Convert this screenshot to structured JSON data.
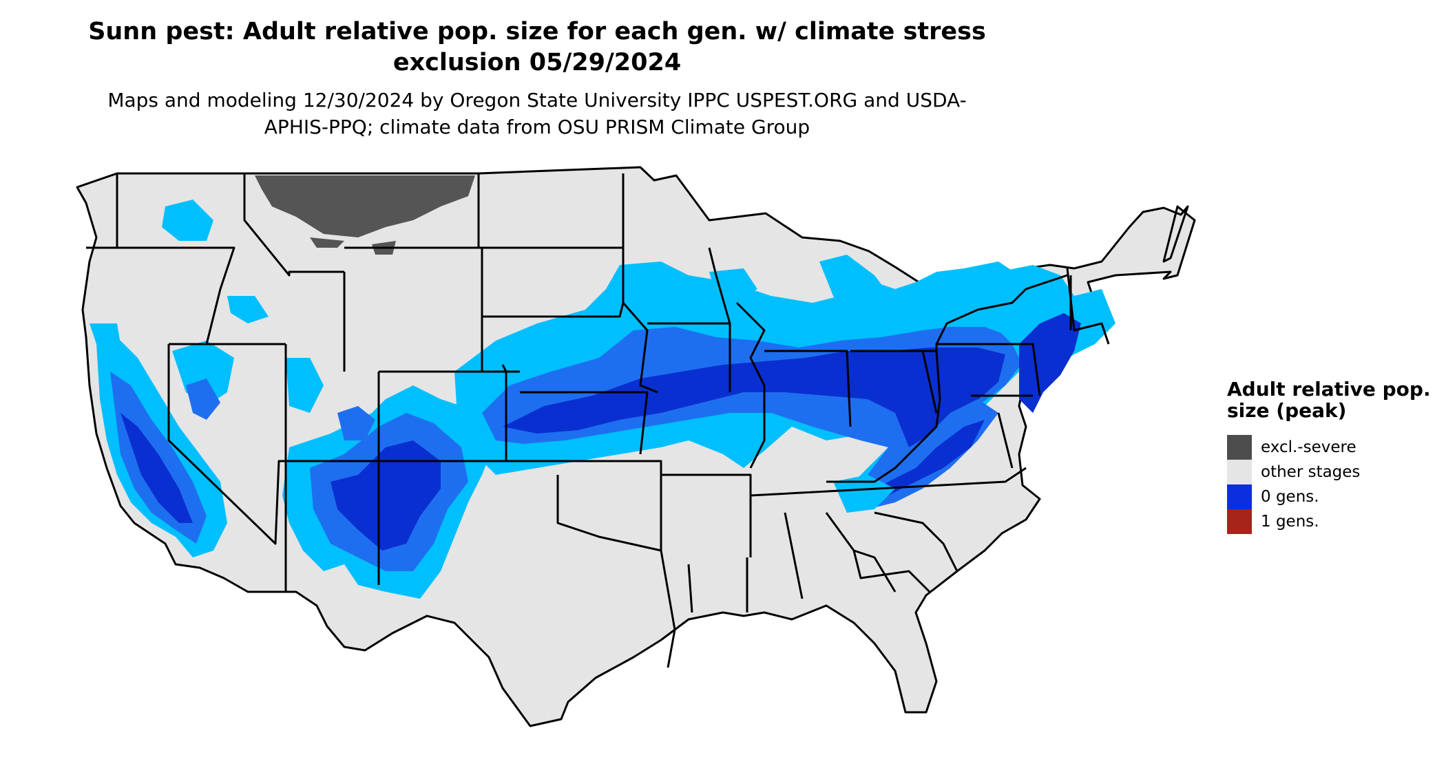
{
  "title": "Sunn pest: Adult relative pop. size for each gen. w/ climate stress exclusion 05/29/2024",
  "subtitle": "Maps and modeling 12/30/2024 by Oregon State University IPPC USPEST.ORG and USDA-APHIS-PPQ; climate data from OSU PRISM Climate Group",
  "map": {
    "region": "conterminous United States",
    "colors": {
      "land": "#e5e5e5",
      "border": "#000000",
      "light_blue": "#00bfff",
      "medium_blue": "#1e6ff0",
      "dark_blue": "#0a2fd0",
      "excluded": "#555555"
    }
  },
  "legend": {
    "title": "Adult relative pop. size (peak)",
    "items": [
      {
        "label": "excl.-severe",
        "color": "#4d4d4d"
      },
      {
        "label": "other stages",
        "color": "#e5e5e5"
      },
      {
        "label": "0 gens.",
        "color": "#0a2ee0"
      },
      {
        "label": "1 gens.",
        "color": "#a6241a"
      }
    ]
  }
}
